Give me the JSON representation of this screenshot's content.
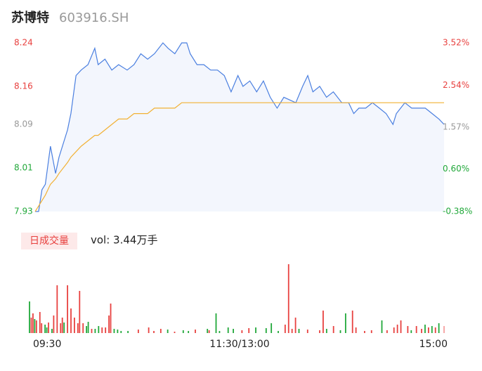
{
  "header": {
    "title": "苏博特",
    "code": "603916.SH"
  },
  "volume_legend": {
    "label": "日成交量",
    "text": "vol: 3.44万手"
  },
  "chart_data": [
    {
      "type": "line",
      "x": [
        0,
        2,
        4,
        6,
        9,
        12,
        14,
        19,
        21,
        24,
        27,
        31,
        35,
        37,
        41,
        45,
        49,
        54,
        58,
        62,
        66,
        70,
        75,
        78,
        82,
        86,
        89,
        91,
        95,
        99,
        103,
        107,
        111,
        115,
        119,
        122,
        126,
        130,
        134,
        138,
        142,
        146,
        153,
        157,
        160,
        163,
        167,
        171,
        175,
        180,
        184,
        187,
        190,
        194,
        198,
        202,
        206,
        210,
        212,
        217,
        221,
        225,
        229,
        233,
        237,
        240
      ],
      "xlim": [
        0,
        240
      ],
      "xticks": [
        {
          "value": 0,
          "label": "09:30"
        },
        {
          "value": 120,
          "label": "11:30/13:00"
        },
        {
          "value": 240,
          "label": "15:00"
        }
      ],
      "series": [
        {
          "color": "#4a7fe0",
          "fill": "#f3f6fd",
          "values": [
            7.93,
            7.93,
            7.97,
            7.98,
            8.05,
            8.0,
            8.03,
            8.08,
            8.11,
            8.18,
            8.19,
            8.2,
            8.23,
            8.2,
            8.21,
            8.19,
            8.2,
            8.19,
            8.2,
            8.22,
            8.21,
            8.22,
            8.24,
            8.23,
            8.22,
            8.24,
            8.24,
            8.22,
            8.2,
            8.2,
            8.19,
            8.19,
            8.18,
            8.15,
            8.18,
            8.16,
            8.17,
            8.15,
            8.17,
            8.14,
            8.12,
            8.14,
            8.13,
            8.16,
            8.18,
            8.15,
            8.16,
            8.14,
            8.15,
            8.13,
            8.13,
            8.11,
            8.12,
            8.12,
            8.13,
            8.12,
            8.11,
            8.09,
            8.11,
            8.13,
            8.12,
            8.12,
            8.12,
            8.11,
            8.1,
            8.09
          ]
        },
        {
          "color": "#f2b134",
          "values": [
            7.93,
            7.94,
            7.95,
            7.96,
            7.98,
            7.99,
            8.0,
            8.02,
            8.03,
            8.04,
            8.05,
            8.06,
            8.07,
            8.07,
            8.08,
            8.09,
            8.1,
            8.1,
            8.11,
            8.11,
            8.11,
            8.12,
            8.12,
            8.12,
            8.12,
            8.13,
            8.13,
            8.13,
            8.13,
            8.13,
            8.13,
            8.13,
            8.13,
            8.13,
            8.13,
            8.13,
            8.13,
            8.13,
            8.13,
            8.13,
            8.13,
            8.13,
            8.13,
            8.13,
            8.13,
            8.13,
            8.13,
            8.13,
            8.13,
            8.13,
            8.13,
            8.13,
            8.13,
            8.13,
            8.13,
            8.13,
            8.13,
            8.13,
            8.13,
            8.13,
            8.13,
            8.13,
            8.13,
            8.13,
            8.13,
            8.13
          ]
        }
      ],
      "ylim": [
        7.93,
        8.24
      ],
      "yticks": [
        8.24,
        8.16,
        8.09,
        8.01,
        7.93
      ],
      "ytick_colors": [
        "#e8413f",
        "#e8413f",
        "#999999",
        "#21a83a",
        "#21a83a"
      ],
      "y2lim": [
        -0.38,
        3.52
      ],
      "y2ticks": [
        {
          "value": 3.52,
          "label": "3.52%"
        },
        {
          "value": 2.54,
          "label": "2.54%"
        },
        {
          "value": 1.57,
          "label": "1.57%"
        },
        {
          "value": 0.6,
          "label": "0.60%"
        },
        {
          "value": -0.38,
          "label": "-0.38%"
        }
      ],
      "y2tick_colors": [
        "#e8413f",
        "#e8413f",
        "#999999",
        "#21a83a",
        "#21a83a"
      ]
    },
    {
      "type": "bar",
      "x": [
        0,
        1,
        2,
        3,
        4,
        6,
        7,
        9,
        10,
        11,
        13,
        14,
        16,
        18,
        19,
        20,
        22,
        24,
        26,
        28,
        29,
        31,
        33,
        34,
        36,
        38,
        40,
        42,
        44,
        46,
        47,
        49,
        51,
        53,
        57,
        63,
        69,
        72,
        76,
        80,
        84,
        89,
        92,
        96,
        103,
        104,
        108,
        110,
        115,
        118,
        123,
        127,
        131,
        137,
        140,
        144,
        148,
        150,
        152,
        154,
        156,
        161,
        168,
        170,
        172,
        176,
        180,
        183,
        187,
        189,
        194,
        198,
        204,
        207,
        211,
        213,
        215,
        219,
        221,
        224,
        227,
        229,
        231,
        233,
        235,
        237,
        240
      ],
      "xlim": [
        0,
        240
      ],
      "ylim": [
        0,
        100
      ],
      "values": [
        45,
        22,
        28,
        20,
        18,
        30,
        14,
        12,
        8,
        15,
        6,
        25,
        68,
        14,
        22,
        15,
        68,
        35,
        22,
        14,
        60,
        14,
        10,
        16,
        6,
        6,
        10,
        8,
        8,
        25,
        42,
        6,
        5,
        3,
        3,
        5,
        8,
        3,
        6,
        5,
        2,
        4,
        3,
        5,
        6,
        4,
        28,
        3,
        8,
        6,
        4,
        7,
        8,
        7,
        14,
        3,
        12,
        98,
        6,
        22,
        6,
        5,
        4,
        32,
        6,
        10,
        4,
        28,
        32,
        8,
        3,
        4,
        18,
        4,
        8,
        12,
        18,
        10,
        4,
        10,
        6,
        12,
        8,
        10,
        8,
        14,
        10
      ],
      "colors": [
        "#21a83a",
        "#e8413f",
        "#e8413f",
        "#21a83a",
        "#e8413f",
        "#e8413f",
        "#e8413f",
        "#21a83a",
        "#21a83a",
        "#e8413f",
        "#21a83a",
        "#e8413f",
        "#e8413f",
        "#e8413f",
        "#e8413f",
        "#21a83a",
        "#e8413f",
        "#e8413f",
        "#e8413f",
        "#e8413f",
        "#e8413f",
        "#e8413f",
        "#21a83a",
        "#21a83a",
        "#e8413f",
        "#21a83a",
        "#21a83a",
        "#e8413f",
        "#e8413f",
        "#e8413f",
        "#e8413f",
        "#21a83a",
        "#21a83a",
        "#21a83a",
        "#21a83a",
        "#e8413f",
        "#e8413f",
        "#e8413f",
        "#e8413f",
        "#21a83a",
        "#e8413f",
        "#21a83a",
        "#21a83a",
        "#e8413f",
        "#21a83a",
        "#e8413f",
        "#21a83a",
        "#21a83a",
        "#21a83a",
        "#21a83a",
        "#e8413f",
        "#e8413f",
        "#21a83a",
        "#21a83a",
        "#21a83a",
        "#21a83a",
        "#e8413f",
        "#e8413f",
        "#e8413f",
        "#e8413f",
        "#21a83a",
        "#e8413f",
        "#e8413f",
        "#e8413f",
        "#21a83a",
        "#e8413f",
        "#21a83a",
        "#21a83a",
        "#e8413f",
        "#e8413f",
        "#e8413f",
        "#e8413f",
        "#21a83a",
        "#e8413f",
        "#e8413f",
        "#e8413f",
        "#e8413f",
        "#e8413f",
        "#21a83a",
        "#e8413f",
        "#e8413f",
        "#21a83a",
        "#e8413f",
        "#21a83a",
        "#e8413f",
        "#21a83a",
        "#f5a0a0"
      ]
    }
  ]
}
